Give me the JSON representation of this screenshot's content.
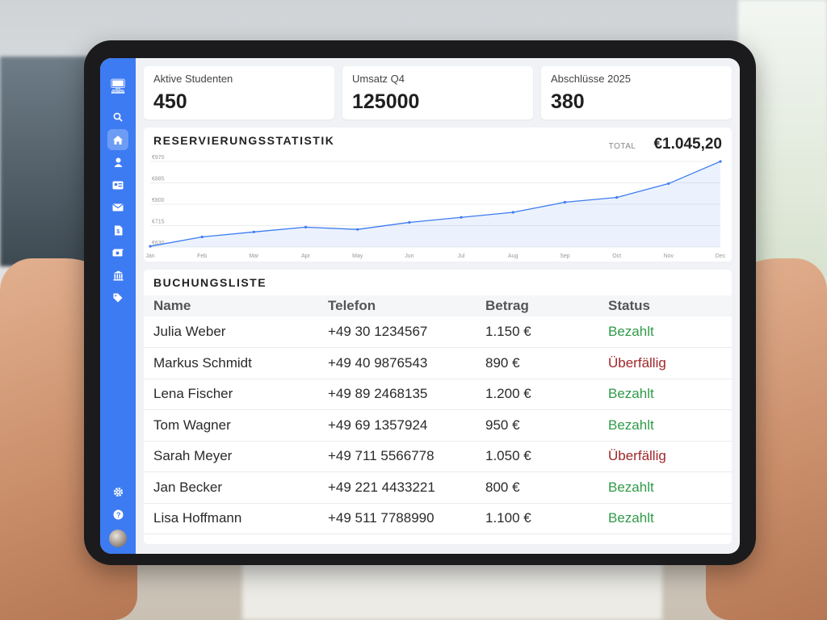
{
  "stats": [
    {
      "label": "Aktive Studenten",
      "value": "450"
    },
    {
      "label": "Umsatz Q4",
      "value": "125000"
    },
    {
      "label": "Abschlüsse 2025",
      "value": "380"
    }
  ],
  "sidebar": {
    "icons": [
      "presentation-icon",
      "search-icon",
      "home-icon",
      "user-icon",
      "id-card-icon",
      "mail-icon",
      "invoice-icon",
      "money-icon",
      "bank-icon",
      "tag-icon"
    ],
    "bottom_icons": [
      "settings-icon",
      "help-icon"
    ],
    "accent": "#3d7bf2"
  },
  "chart_card": {
    "title": "RESERVIERUNGSSTATISTIK",
    "total_label": "TOTAL",
    "total_value": "€1.045,20"
  },
  "chart_data": {
    "type": "area",
    "categories": [
      "Jan",
      "Feb",
      "Mar",
      "Apr",
      "May",
      "Jun",
      "Jul",
      "Aug",
      "Sep",
      "Oct",
      "Nov",
      "Dec"
    ],
    "values": [
      633,
      670,
      690,
      709,
      700,
      728,
      748,
      768,
      808,
      827,
      882,
      970
    ],
    "yticks": [
      "€970",
      "€885",
      "€800",
      "€715",
      "€630"
    ],
    "ylim": [
      630,
      970
    ],
    "grid": true,
    "color": "#3d7bf2"
  },
  "bookings": {
    "title": "BUCHUNGSLISTE",
    "headers": [
      "Name",
      "Telefon",
      "Betrag",
      "Status"
    ],
    "rows": [
      {
        "name": "Julia Weber",
        "phone": "+49 30 1234567",
        "amount": "1.150 €",
        "status": "Bezahlt",
        "state": "paid"
      },
      {
        "name": "Markus Schmidt",
        "phone": "+49 40 9876543",
        "amount": "890 €",
        "status": "Überfällig",
        "state": "overdue"
      },
      {
        "name": "Lena Fischer",
        "phone": "+49 89 2468135",
        "amount": "1.200 €",
        "status": "Bezahlt",
        "state": "paid"
      },
      {
        "name": "Tom Wagner",
        "phone": "+49 69 1357924",
        "amount": "950 €",
        "status": "Bezahlt",
        "state": "paid"
      },
      {
        "name": "Sarah Meyer",
        "phone": "+49 711 5566778",
        "amount": "1.050 €",
        "status": "Überfällig",
        "state": "overdue"
      },
      {
        "name": "Jan Becker",
        "phone": "+49 221 4433221",
        "amount": "800 €",
        "status": "Bezahlt",
        "state": "paid"
      },
      {
        "name": "Lisa Hoffmann",
        "phone": "+49 511 7788990",
        "amount": "1.100 €",
        "status": "Bezahlt",
        "state": "paid"
      }
    ]
  }
}
